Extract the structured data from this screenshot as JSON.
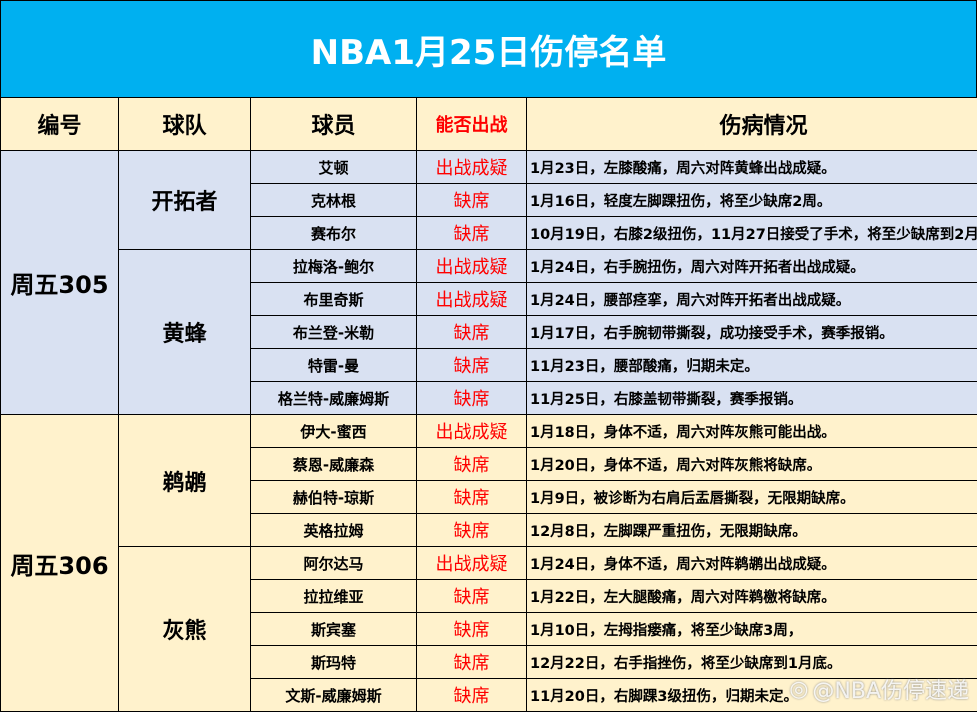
{
  "title": "NBA1月25日伤停名单",
  "headers": {
    "id": "编号",
    "team": "球队",
    "player": "球员",
    "status": "能否出战",
    "injury": "伤病情况"
  },
  "watermark": "@NBA伤停速递",
  "groups": [
    {
      "id": "周五305",
      "teams": [
        {
          "name": "开拓者",
          "players": [
            {
              "name": "艾顿",
              "status": "出战成疑",
              "injury": "1月23日，左膝酸痛，周六对阵黄蜂出战成疑。"
            },
            {
              "name": "克林根",
              "status": "缺席",
              "injury": "1月16日，轻度左脚踝扭伤，将至少缺席2周。"
            },
            {
              "name": "赛布尔",
              "status": "缺席",
              "injury": "10月19日，右膝2级扭伤，11月27日接受了手术，将至少缺席到2月"
            }
          ]
        },
        {
          "name": "黄蜂",
          "players": [
            {
              "name": "拉梅洛-鲍尔",
              "status": "出战成疑",
              "injury": "1月24日，右手腕扭伤，周六对阵开拓者出战成疑。"
            },
            {
              "name": "布里奇斯",
              "status": "出战成疑",
              "injury": "1月24日，腰部痉挛，周六对阵开拓者出战成疑。"
            },
            {
              "name": "布兰登-米勒",
              "status": "缺席",
              "injury": "1月17日，右手腕韧带撕裂，成功接受手术，赛季报销。"
            },
            {
              "name": "特雷-曼",
              "status": "缺席",
              "injury": "11月23日，腰部酸痛，归期未定。"
            },
            {
              "name": "格兰特-威廉姆斯",
              "status": "缺席",
              "injury": "11月25日，右膝盖韧带撕裂，赛季报销。"
            }
          ]
        }
      ]
    },
    {
      "id": "周五306",
      "teams": [
        {
          "name": "鹈鹕",
          "players": [
            {
              "name": "伊大-蜜西",
              "status": "出战成疑",
              "injury": "1月18日，身体不适，周六对阵灰熊可能出战。"
            },
            {
              "name": "蔡恩-威廉森",
              "status": "缺席",
              "injury": "1月20日，身体不适，周六对阵灰熊将缺席。"
            },
            {
              "name": "赫伯特-琼斯",
              "status": "缺席",
              "injury": "1月9日，被诊断为右肩后盂唇撕裂，无限期缺席。"
            },
            {
              "name": "英格拉姆",
              "status": "缺席",
              "injury": "12月8日，左脚踝严重扭伤，无限期缺席。"
            }
          ]
        },
        {
          "name": "灰熊",
          "players": [
            {
              "name": "阿尔达马",
              "status": "出战成疑",
              "injury": "1月24日，身体不适，周六对阵鹈鹕出战成疑。"
            },
            {
              "name": "拉拉维亚",
              "status": "缺席",
              "injury": "1月22日，左大腿酸痛，周六对阵鹈檄将缺席。"
            },
            {
              "name": "斯宾塞",
              "status": "缺席",
              "injury": "1月10日，左拇指瘘痛，将至少缺席3周，"
            },
            {
              "name": "斯玛特",
              "status": "缺席",
              "injury": "12月22日，右手指挫伤，将至少缺席到1月底。"
            },
            {
              "name": "文斯-威廉姆斯",
              "status": "缺席",
              "injury": "11月20日，右脚踝3级扭伤，归期未定。"
            }
          ]
        }
      ]
    }
  ]
}
